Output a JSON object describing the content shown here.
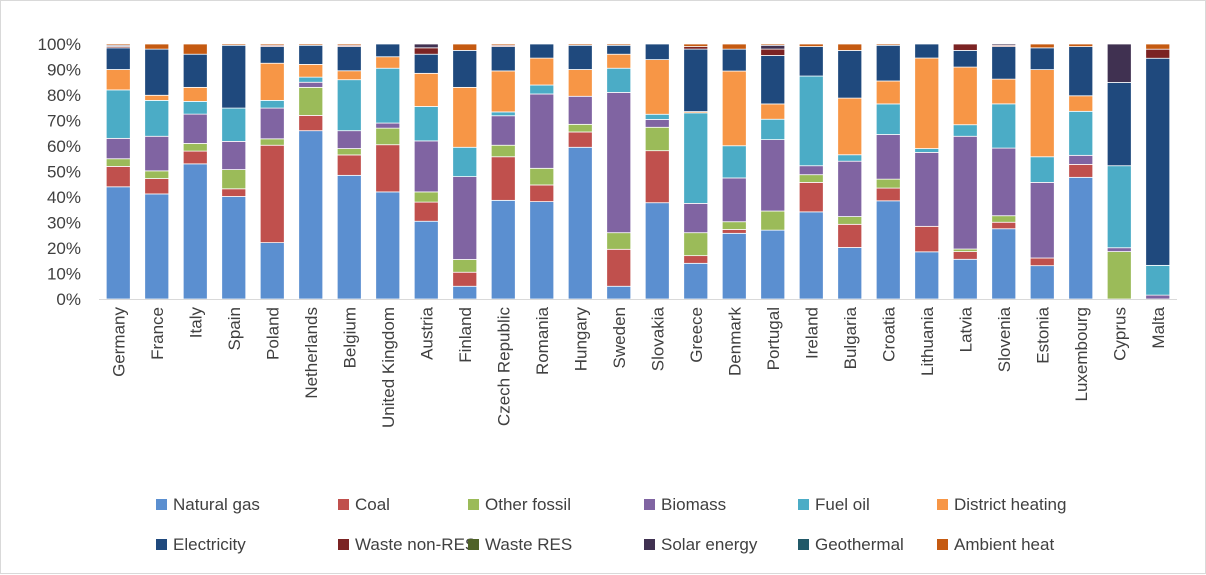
{
  "chart_data": {
    "type": "bar",
    "stacked": true,
    "percent_stacked": true,
    "title": "",
    "xlabel": "",
    "ylabel": "",
    "ylim": [
      0,
      100
    ],
    "y_ticks": [
      "0%",
      "10%",
      "20%",
      "30%",
      "40%",
      "50%",
      "60%",
      "70%",
      "80%",
      "90%",
      "100%"
    ],
    "grid": false,
    "legend_position": "bottom",
    "categories": [
      "Germany",
      "France",
      "Italy",
      "Spain",
      "Poland",
      "Netherlands",
      "Belgium",
      "United Kingdom",
      "Austria",
      "Finland",
      "Czech Republic",
      "Romania",
      "Hungary",
      "Sweden",
      "Slovakia",
      "Greece",
      "Denmark",
      "Portugal",
      "Ireland",
      "Bulgaria",
      "Croatia",
      "Lithuania",
      "Latvia",
      "Slovenia",
      "Estonia",
      "Luxembourg",
      "Cyprus",
      "Malta"
    ],
    "series": [
      {
        "name": "Natural gas",
        "color": "#5b8fd0",
        "values": [
          44,
          41,
          53,
          40,
          22,
          66,
          48.5,
          42,
          30.5,
          5,
          38.5,
          38,
          59.5,
          5,
          37,
          14,
          25.5,
          27,
          34,
          20,
          38.5,
          18.5,
          15.5,
          27,
          13,
          47,
          0,
          0
        ]
      },
      {
        "name": "Coal",
        "color": "#c0504d",
        "values": [
          8,
          6,
          5,
          3,
          38,
          6,
          8,
          18.5,
          7.5,
          5.5,
          17,
          6.5,
          6,
          14.5,
          20,
          3,
          1.5,
          0,
          11.5,
          9,
          5,
          10,
          3,
          2.5,
          3,
          5,
          0,
          0
        ]
      },
      {
        "name": "Other fossil",
        "color": "#9bbb59",
        "values": [
          3,
          3,
          3,
          7.5,
          2.5,
          11,
          2.5,
          6.5,
          4,
          5,
          4.5,
          6.5,
          3,
          6.5,
          9,
          9,
          3,
          7.5,
          3,
          3,
          3.5,
          0,
          1,
          2.5,
          0,
          0,
          18.5,
          0
        ]
      },
      {
        "name": "Biomass",
        "color": "#8064a2",
        "values": [
          8,
          13.5,
          11.5,
          11,
          12,
          2,
          7,
          2,
          20,
          32.5,
          11.5,
          29,
          11,
          55,
          3,
          11.5,
          17,
          28,
          3.5,
          21.5,
          17.5,
          29,
          44,
          26,
          29.5,
          3.5,
          1.5,
          1.5
        ]
      },
      {
        "name": "Fuel oil",
        "color": "#4bacc6",
        "values": [
          19,
          14,
          5,
          13,
          3,
          2,
          20,
          21.5,
          13.5,
          11.5,
          1.5,
          3.5,
          0,
          9.5,
          2,
          35.5,
          12.5,
          8,
          35,
          2.5,
          12,
          1.5,
          4.5,
          17,
          10,
          17,
          32,
          11.5
        ]
      },
      {
        "name": "District heating",
        "color": "#f79646",
        "values": [
          8,
          2,
          5.5,
          0,
          14.5,
          5,
          3.5,
          4.5,
          13,
          23.5,
          16,
          10.5,
          10.5,
          5.5,
          21,
          0.5,
          29,
          6,
          0,
          22,
          9,
          35.5,
          22.5,
          9.5,
          34,
          6,
          0,
          0
        ]
      },
      {
        "name": "Electricity",
        "color": "#1f497d",
        "values": [
          8.5,
          18,
          13,
          24.5,
          6.5,
          7.5,
          9.5,
          5,
          7.5,
          14.5,
          9.5,
          5.5,
          9.5,
          3.5,
          6,
          24.5,
          8.5,
          19,
          11.5,
          18.5,
          14,
          5.5,
          6.5,
          12.5,
          8.5,
          19,
          32.5,
          80
        ]
      },
      {
        "name": "Waste non-RES",
        "color": "#7b2323",
        "values": [
          0.5,
          0,
          0,
          0,
          0.5,
          0,
          0.5,
          0,
          2.5,
          0,
          0.5,
          0,
          0,
          0,
          0,
          1,
          0,
          2.5,
          0,
          0,
          0,
          0,
          2.5,
          0.5,
          0,
          0,
          0,
          3.5
        ]
      },
      {
        "name": "Waste RES",
        "color": "#4f6228",
        "values": [
          0,
          0,
          0,
          0,
          0,
          0,
          0,
          0,
          0,
          0,
          0,
          0,
          0,
          0,
          0,
          0,
          0,
          0,
          0,
          0,
          0,
          0,
          0,
          0,
          0,
          0,
          0,
          0
        ]
      },
      {
        "name": "Solar energy",
        "color": "#403151",
        "values": [
          0.5,
          0,
          0,
          0,
          0,
          0,
          0,
          0,
          1.5,
          0,
          0,
          0,
          0,
          0,
          0,
          0,
          0,
          1.5,
          0,
          0,
          0,
          0,
          0,
          0.5,
          0,
          0,
          15,
          0
        ]
      },
      {
        "name": "Geothermal",
        "color": "#215968",
        "values": [
          0,
          0,
          0,
          0,
          0,
          0,
          0,
          0,
          0,
          0,
          0,
          0,
          0,
          0,
          0,
          0,
          0,
          0,
          0,
          0,
          0,
          0,
          0,
          0,
          0,
          0,
          0,
          0
        ]
      },
      {
        "name": "Ambient heat",
        "color": "#c55a11",
        "values": [
          0.5,
          2,
          4,
          0.5,
          0.5,
          0.5,
          0.5,
          0,
          0,
          2.5,
          0.5,
          0,
          0.5,
          0.5,
          0,
          1,
          2,
          0.5,
          1,
          2.5,
          0.5,
          0,
          0,
          0,
          1.5,
          1,
          0,
          2
        ]
      }
    ]
  }
}
